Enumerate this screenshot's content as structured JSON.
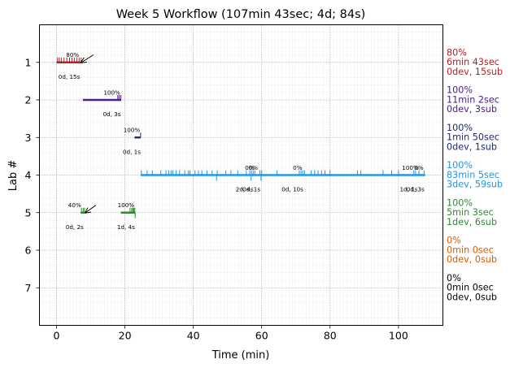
{
  "chart_data": {
    "type": "timeline",
    "title": "Week 5 Workflow (107min 43sec; 4d; 84s)",
    "xlabel": "Time (min)",
    "ylabel": "Lab #",
    "xlim": [
      -5,
      113
    ],
    "ylim": [
      8,
      0
    ],
    "x_ticks": [
      0,
      20,
      40,
      60,
      80,
      100
    ],
    "y_ticks": [
      1,
      2,
      3,
      4,
      5,
      6,
      7
    ],
    "grid": true,
    "labs": [
      {
        "lab": 1,
        "color": "#b22222",
        "segments": [
          [
            0,
            7.3
          ]
        ],
        "events": [
          0.3,
          0.8,
          1.4,
          2.2,
          3.0,
          3.8,
          4.5,
          5.2,
          5.9,
          6.6,
          7.2
        ],
        "annotations": [
          {
            "x": 4.7,
            "y": 0.8,
            "text": "80%"
          },
          {
            "x": 3.7,
            "y": 1.38,
            "text": "0d, 15s"
          }
        ],
        "arrow": {
          "from": [
            10.8,
            0.8
          ],
          "to": [
            7.3,
            1.0
          ]
        },
        "summary": [
          "80%",
          "6min 43sec",
          "0dev, 15sub"
        ]
      },
      {
        "lab": 2,
        "color": "#4b1c8c",
        "segments": [
          [
            7.7,
            18.9
          ]
        ],
        "events": [
          17.9,
          18.3,
          18.8
        ],
        "annotations": [
          {
            "x": 16.2,
            "y": 1.8,
            "text": "100%"
          },
          {
            "x": 16.2,
            "y": 2.38,
            "text": "0d, 3s"
          }
        ],
        "summary": [
          "100%",
          "11min 2sec",
          "0dev, 3sub"
        ]
      },
      {
        "lab": 3,
        "color": "#1f2a6e",
        "segments": [
          [
            22.8,
            24.6
          ]
        ],
        "events": [
          24.6
        ],
        "annotations": [
          {
            "x": 22.0,
            "y": 2.8,
            "text": "100%"
          },
          {
            "x": 22.0,
            "y": 3.38,
            "text": "0d, 1s"
          }
        ],
        "summary": [
          "100%",
          "1min 50sec",
          "0dev, 1sub"
        ]
      },
      {
        "lab": 4,
        "color": "#2196e6",
        "segments": [
          [
            24.6,
            107.8
          ]
        ],
        "events": [
          24.8,
          26.5,
          28.0,
          30.5,
          32.0,
          32.8,
          33.5,
          34.0,
          35.0,
          36.0,
          37.5,
          38.5,
          39.0,
          40.5,
          41.5,
          42.5,
          44.0,
          45.5,
          47.0,
          49.5,
          51.0,
          53.0,
          55.5,
          56.5,
          57.0,
          57.5,
          58.0,
          59.5,
          60.0,
          64.5,
          71.0,
          71.5,
          72.0,
          72.5,
          74.5,
          75.5,
          76.5,
          77.5,
          78.5,
          80.0,
          88.0,
          89.0,
          95.5,
          98.0,
          100.0,
          104.5,
          105.0,
          106.0,
          107.5
        ],
        "down_events": [
          46.8,
          56.9,
          59.8
        ],
        "annotations": [
          {
            "x": 56.5,
            "y": 3.8,
            "text": "0%"
          },
          {
            "x": 57.5,
            "y": 3.8,
            "text": "0%"
          },
          {
            "x": 70.5,
            "y": 3.8,
            "text": "0%"
          },
          {
            "x": 103.5,
            "y": 3.8,
            "text": "100%"
          },
          {
            "x": 106.0,
            "y": 3.8,
            "text": "0%"
          },
          {
            "x": 55.0,
            "y": 4.38,
            "text": "2d, 4s"
          },
          {
            "x": 57.0,
            "y": 4.38,
            "text": "0d, 1s"
          },
          {
            "x": 69.0,
            "y": 4.38,
            "text": "0d, 10s"
          },
          {
            "x": 103.0,
            "y": 4.38,
            "text": "1d, 1s"
          },
          {
            "x": 105.0,
            "y": 4.38,
            "text": "0d, 3s"
          }
        ],
        "summary": [
          "100%",
          "83min 5sec",
          "3dev, 59sub"
        ]
      },
      {
        "lab": 5,
        "color": "#2e8b2e",
        "segments": [
          [
            7.0,
            8.3
          ],
          [
            18.8,
            23.0
          ]
        ],
        "events": [
          7.3,
          7.8,
          8.2,
          21.5,
          22.0,
          22.3,
          22.6,
          22.9
        ],
        "down_events": [
          23.0
        ],
        "annotations": [
          {
            "x": 5.3,
            "y": 4.8,
            "text": "40%"
          },
          {
            "x": 5.3,
            "y": 5.38,
            "text": "0d, 2s"
          },
          {
            "x": 20.3,
            "y": 4.8,
            "text": "100%"
          },
          {
            "x": 20.3,
            "y": 5.38,
            "text": "1d, 4s"
          }
        ],
        "arrow": {
          "from": [
            11.5,
            4.8
          ],
          "to": [
            8.5,
            5.0
          ]
        },
        "summary": [
          "100%",
          "5min 3sec",
          "1dev, 6sub"
        ]
      },
      {
        "lab": 6,
        "color": "#e05a00",
        "segments": [],
        "events": [],
        "annotations": [],
        "summary": [
          "0%",
          "0min 0sec",
          "0dev, 0sub"
        ]
      },
      {
        "lab": 7,
        "color": "#000000",
        "segments": [],
        "events": [],
        "annotations": [],
        "summary": [
          "0%",
          "0min 0sec",
          "0dev, 0sub"
        ]
      }
    ]
  }
}
